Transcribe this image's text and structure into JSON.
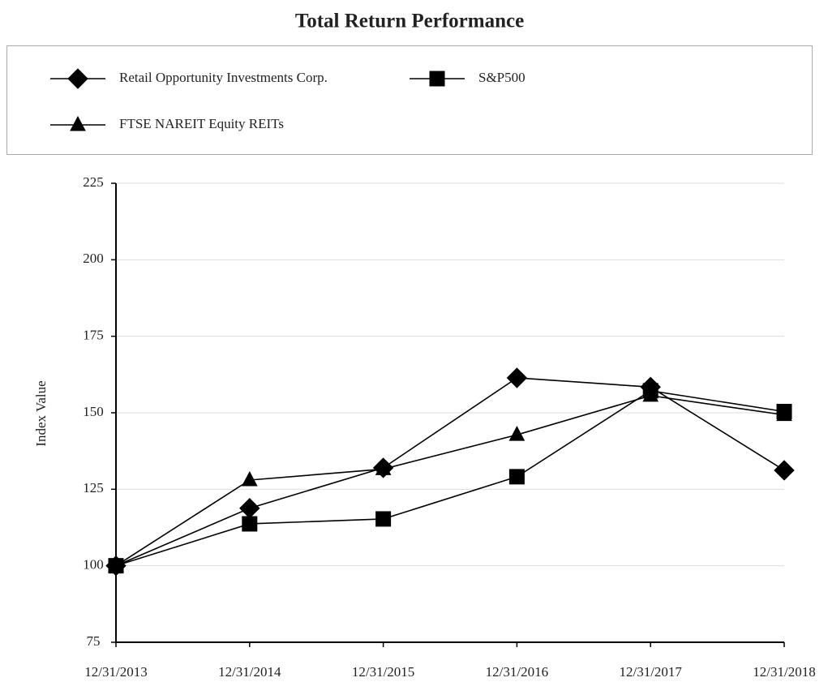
{
  "chart_data": {
    "type": "line",
    "title": "Total Return Performance",
    "y_label": "Index Value",
    "categories": [
      "12/31/2013",
      "12/31/2014",
      "12/31/2015",
      "12/31/2016",
      "12/31/2017",
      "12/31/2018"
    ],
    "series": [
      {
        "name": "Retail Opportunity Investments Corp.",
        "color": "#000000",
        "marker": "diamond",
        "values": [
          100,
          118.8,
          132,
          161.4,
          158.4,
          131.2
        ]
      },
      {
        "name": "S&P500",
        "color": "#000000",
        "marker": "square",
        "values": [
          100,
          113.7,
          115.3,
          129.1,
          157.2,
          150.4
        ]
      },
      {
        "name": "FTSE NAREIT Equity REITs",
        "color": "#000000",
        "marker": "triangle",
        "values": [
          100,
          128,
          131.6,
          142.8,
          155.6,
          149.3
        ]
      }
    ],
    "ylim": [
      75,
      225
    ],
    "yticks": [
      75,
      100,
      125,
      150,
      175,
      200,
      225
    ],
    "grid": true
  }
}
